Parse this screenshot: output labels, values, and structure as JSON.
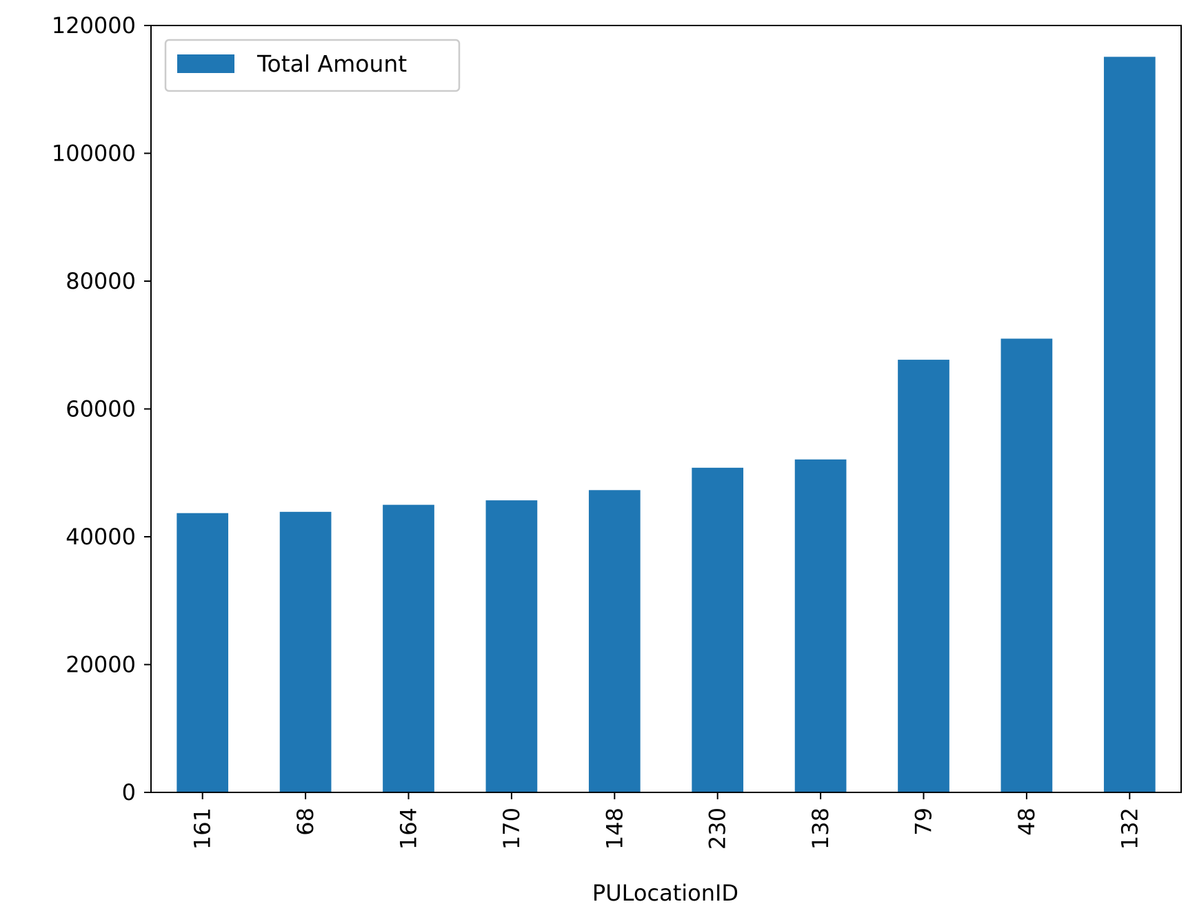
{
  "chart_data": {
    "type": "bar",
    "categories": [
      "161",
      "68",
      "164",
      "170",
      "148",
      "230",
      "138",
      "79",
      "48",
      "132"
    ],
    "series": [
      {
        "name": "Total Amount",
        "color": "#1f77b4",
        "values": [
          43700,
          43900,
          45000,
          45700,
          47300,
          50800,
          52100,
          67700,
          71000,
          115100
        ]
      }
    ],
    "xlabel": "PULocationID",
    "ylabel": "",
    "ylim": [
      0,
      120000
    ],
    "yticks": [
      0,
      20000,
      40000,
      60000,
      80000,
      100000,
      120000
    ],
    "ytick_labels": [
      "0",
      "20000",
      "40000",
      "60000",
      "80000",
      "100000",
      "120000"
    ],
    "grid": false,
    "legend_position": "top-left",
    "xtick_rotation": "vertical"
  }
}
